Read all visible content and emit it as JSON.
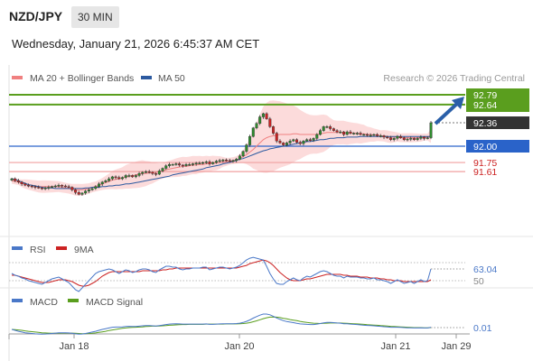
{
  "header": {
    "symbol": "NZD/JPY",
    "timeframe": "30 MIN",
    "datetime": "Wednesday, January 21, 2026 6:45:37 AM CET"
  },
  "colors": {
    "ma20": "#f08080",
    "ma50": "#2c5aa0",
    "bands_fill": "#fbd5d5",
    "candle_up": "#2e8b2e",
    "candle_down": "#cc2222",
    "resistance": "#5a9e1e",
    "support": "#2a63c9",
    "pivot_dark": "#333333",
    "rsi": "#4a78c8",
    "rsi_ma": "#cc2222",
    "macd": "#4a78c8",
    "macd_signal": "#5a9e1e"
  },
  "chart_data": {
    "type": "candlestick",
    "legend": [
      {
        "name": "MA 20 + Bollinger Bands",
        "color": "#f08080"
      },
      {
        "name": "MA 50",
        "color": "#2c5aa0"
      }
    ],
    "credit": "Research © 2026 Trading Central",
    "ylim": [
      91.2,
      92.88
    ],
    "x_ticks": [
      "Jan 18",
      "Jan 20",
      "Jan 21",
      "Jan 29"
    ],
    "levels": [
      {
        "value": 92.79,
        "label": "92.79",
        "kind": "resistance-box"
      },
      {
        "value": 92.64,
        "label": "92.64",
        "kind": "resistance"
      },
      {
        "value": 92.36,
        "label": "92.36",
        "kind": "current"
      },
      {
        "value": 92.0,
        "label": "92.00",
        "kind": "support-box"
      },
      {
        "value": 91.75,
        "label": "91.75",
        "kind": "support-minor"
      },
      {
        "value": 91.61,
        "label": "91.61",
        "kind": "support-minor"
      }
    ],
    "close": [
      91.5,
      91.47,
      91.45,
      91.42,
      91.4,
      91.39,
      91.38,
      91.37,
      91.36,
      91.35,
      91.36,
      91.37,
      91.38,
      91.39,
      91.4,
      91.39,
      91.38,
      91.37,
      91.33,
      91.29,
      91.26,
      91.28,
      91.31,
      91.33,
      91.35,
      91.38,
      91.42,
      91.45,
      91.47,
      91.5,
      91.53,
      91.52,
      91.5,
      91.52,
      91.55,
      91.55,
      91.53,
      91.55,
      91.58,
      91.6,
      91.61,
      91.6,
      91.58,
      91.57,
      91.62,
      91.66,
      91.7,
      91.72,
      91.72,
      91.73,
      91.71,
      91.7,
      91.72,
      91.72,
      91.73,
      91.74,
      91.74,
      91.75,
      91.76,
      91.73,
      91.75,
      91.77,
      91.78,
      91.79,
      91.78,
      91.77,
      91.78,
      91.8,
      91.85,
      91.92,
      92.02,
      92.15,
      92.28,
      92.35,
      92.45,
      92.5,
      92.42,
      92.3,
      92.2,
      92.08,
      92.05,
      92.02,
      92.05,
      92.08,
      92.1,
      92.06,
      92.04,
      92.08,
      92.1,
      92.09,
      92.12,
      92.18,
      92.24,
      92.3,
      92.3,
      92.27,
      92.24,
      92.22,
      92.22,
      92.18,
      92.22,
      92.2,
      92.2,
      92.2,
      92.18,
      92.18,
      92.17,
      92.17,
      92.18,
      92.16,
      92.16,
      92.14,
      92.13,
      92.1,
      92.12,
      92.15,
      92.13,
      92.1,
      92.11,
      92.12,
      92.1,
      92.12,
      92.14,
      92.12,
      92.13,
      92.36
    ],
    "ma20": [
      91.47,
      91.46,
      91.45,
      91.43,
      91.42,
      91.41,
      91.4,
      91.39,
      91.38,
      91.38,
      91.38,
      91.38,
      91.38,
      91.38,
      91.38,
      91.37,
      91.36,
      91.35,
      91.34,
      91.33,
      91.33,
      91.33,
      91.34,
      91.35,
      91.37,
      91.38,
      91.4,
      91.42,
      91.44,
      91.46,
      91.48,
      91.49,
      91.5,
      91.51,
      91.53,
      91.54,
      91.55,
      91.56,
      91.57,
      91.58,
      91.58,
      91.59,
      91.59,
      91.6,
      91.61,
      91.62,
      91.64,
      91.65,
      91.66,
      91.67,
      91.68,
      91.69,
      91.69,
      91.7,
      91.71,
      91.71,
      91.72,
      91.72,
      91.73,
      91.73,
      91.74,
      91.74,
      91.75,
      91.76,
      91.76,
      91.77,
      91.78,
      91.79,
      91.81,
      91.84,
      91.87,
      91.91,
      91.95,
      92.0,
      92.05,
      92.1,
      92.13,
      92.15,
      92.16,
      92.17,
      92.18,
      92.18,
      92.18,
      92.18,
      92.19,
      92.19,
      92.18,
      92.18,
      92.18,
      92.18,
      92.18,
      92.18,
      92.19,
      92.2,
      92.21,
      92.21,
      92.21,
      92.21,
      92.21,
      92.21,
      92.2,
      92.2,
      92.2,
      92.2,
      92.19,
      92.19,
      92.18,
      92.18,
      92.17,
      92.17,
      92.16,
      92.16,
      92.15,
      92.14,
      92.14,
      92.14,
      92.13,
      92.13,
      92.13,
      92.13,
      92.13,
      92.13,
      92.13,
      92.14,
      92.14,
      92.16
    ],
    "ma50": [
      91.5,
      91.49,
      91.47,
      91.45,
      91.43,
      91.41,
      91.4,
      91.39,
      91.38,
      91.37,
      91.36,
      91.36,
      91.36,
      91.35,
      91.35,
      91.35,
      91.35,
      91.35,
      91.35,
      91.35,
      91.35,
      91.35,
      91.36,
      91.36,
      91.37,
      91.37,
      91.37,
      91.38,
      91.38,
      91.39,
      91.39,
      91.4,
      91.4,
      91.41,
      91.42,
      91.42,
      91.43,
      91.44,
      91.45,
      91.46,
      91.47,
      91.48,
      91.49,
      91.5,
      91.51,
      91.52,
      91.53,
      91.54,
      91.56,
      91.57,
      91.58,
      91.59,
      91.6,
      91.61,
      91.62,
      91.63,
      91.64,
      91.65,
      91.67,
      91.68,
      91.69,
      91.7,
      91.71,
      91.73,
      91.74,
      91.75,
      91.77,
      91.78,
      91.8,
      91.81,
      91.83,
      91.85,
      91.87,
      91.89,
      91.91,
      91.93,
      91.94,
      91.96,
      91.97,
      91.98,
      91.99,
      92.0,
      92.01,
      92.02,
      92.03,
      92.04,
      92.05,
      92.06,
      92.07,
      92.07,
      92.08,
      92.09,
      92.1,
      92.1,
      92.11,
      92.12,
      92.12,
      92.13,
      92.13,
      92.13,
      92.14,
      92.14,
      92.14,
      92.14,
      92.15,
      92.15,
      92.15,
      92.15,
      92.15,
      92.15,
      92.15,
      92.15,
      92.15,
      92.15,
      92.15,
      92.15,
      92.15,
      92.15,
      92.15,
      92.15,
      92.15,
      92.15,
      92.15,
      92.15,
      92.15,
      92.15
    ],
    "rsi": {
      "name": "RSI",
      "ma_name": "9MA",
      "levels": [
        {
          "value": 70,
          "label": ""
        },
        {
          "value": 63.04,
          "label": "63.04"
        },
        {
          "value": 50,
          "label": "50"
        }
      ],
      "ylim": [
        30,
        80
      ],
      "values": [
        58,
        56,
        55,
        53,
        52,
        50,
        49,
        48,
        47,
        46,
        48,
        50,
        52,
        53,
        54,
        52,
        50,
        48,
        44,
        40,
        38,
        42,
        46,
        50,
        54,
        58,
        60,
        61,
        62,
        63,
        62,
        60,
        58,
        60,
        62,
        61,
        59,
        60,
        62,
        63,
        63,
        62,
        60,
        59,
        62,
        64,
        66,
        66,
        65,
        65,
        63,
        62,
        63,
        63,
        64,
        64,
        64,
        65,
        65,
        62,
        63,
        64,
        65,
        65,
        64,
        63,
        64,
        65,
        67,
        70,
        73,
        75,
        76,
        75,
        74,
        73,
        66,
        58,
        52,
        47,
        46,
        46,
        49,
        51,
        53,
        51,
        50,
        53,
        55,
        54,
        56,
        58,
        60,
        61,
        60,
        58,
        56,
        55,
        55,
        53,
        55,
        54,
        54,
        54,
        53,
        53,
        52,
        52,
        53,
        51,
        51,
        50,
        49,
        47,
        49,
        51,
        49,
        47,
        48,
        49,
        47,
        49,
        51,
        49,
        50,
        63
      ],
      "ma_values": [
        56,
        56,
        55,
        54,
        53,
        52,
        51,
        50,
        49,
        48,
        48,
        48,
        49,
        50,
        51,
        51,
        51,
        50,
        49,
        47,
        45,
        44,
        44,
        45,
        47,
        49,
        52,
        55,
        57,
        59,
        60,
        60,
        60,
        60,
        60,
        60,
        60,
        60,
        60,
        61,
        61,
        61,
        61,
        61,
        61,
        62,
        62,
        63,
        63,
        64,
        64,
        64,
        64,
        64,
        64,
        64,
        64,
        64,
        64,
        64,
        64,
        64,
        64,
        64,
        64,
        64,
        64,
        64,
        65,
        66,
        67,
        69,
        70,
        71,
        72,
        73,
        72,
        70,
        67,
        63,
        59,
        56,
        53,
        51,
        50,
        50,
        50,
        51,
        52,
        52,
        53,
        54,
        55,
        56,
        57,
        57,
        57,
        57,
        57,
        56,
        56,
        55,
        55,
        55,
        54,
        54,
        54,
        53,
        53,
        53,
        52,
        52,
        51,
        51,
        50,
        50,
        50,
        49,
        49,
        49,
        49,
        49,
        49,
        49,
        49,
        51
      ]
    },
    "macd": {
      "name": "MACD",
      "signal_name": "MACD Signal",
      "levels": [
        {
          "value": 0.01,
          "label": "0.01"
        }
      ],
      "ylim": [
        -0.06,
        0.1
      ],
      "values": [
        0.0,
        -0.005,
        -0.01,
        -0.014,
        -0.018,
        -0.02,
        -0.022,
        -0.024,
        -0.025,
        -0.026,
        -0.025,
        -0.024,
        -0.022,
        -0.02,
        -0.018,
        -0.018,
        -0.018,
        -0.019,
        -0.021,
        -0.024,
        -0.026,
        -0.025,
        -0.022,
        -0.018,
        -0.014,
        -0.01,
        -0.005,
        0.0,
        0.004,
        0.008,
        0.012,
        0.013,
        0.013,
        0.014,
        0.016,
        0.017,
        0.016,
        0.016,
        0.018,
        0.02,
        0.021,
        0.021,
        0.02,
        0.019,
        0.021,
        0.024,
        0.027,
        0.029,
        0.03,
        0.031,
        0.03,
        0.029,
        0.029,
        0.029,
        0.029,
        0.029,
        0.029,
        0.029,
        0.03,
        0.028,
        0.028,
        0.029,
        0.03,
        0.031,
        0.031,
        0.031,
        0.031,
        0.032,
        0.034,
        0.038,
        0.044,
        0.052,
        0.062,
        0.07,
        0.078,
        0.084,
        0.084,
        0.08,
        0.072,
        0.063,
        0.055,
        0.048,
        0.043,
        0.04,
        0.037,
        0.033,
        0.03,
        0.029,
        0.028,
        0.027,
        0.027,
        0.029,
        0.032,
        0.036,
        0.038,
        0.038,
        0.037,
        0.035,
        0.034,
        0.031,
        0.031,
        0.029,
        0.028,
        0.027,
        0.025,
        0.023,
        0.022,
        0.021,
        0.02,
        0.018,
        0.017,
        0.015,
        0.014,
        0.012,
        0.012,
        0.012,
        0.011,
        0.01,
        0.009,
        0.009,
        0.008,
        0.008,
        0.009,
        0.008,
        0.008,
        0.012
      ],
      "signal_values": [
        0.0,
        -0.001,
        -0.003,
        -0.005,
        -0.008,
        -0.01,
        -0.012,
        -0.014,
        -0.016,
        -0.018,
        -0.019,
        -0.02,
        -0.021,
        -0.021,
        -0.021,
        -0.02,
        -0.02,
        -0.02,
        -0.02,
        -0.021,
        -0.022,
        -0.023,
        -0.023,
        -0.022,
        -0.021,
        -0.019,
        -0.016,
        -0.013,
        -0.01,
        -0.006,
        -0.003,
        0.0,
        0.003,
        0.006,
        0.008,
        0.01,
        0.011,
        0.012,
        0.013,
        0.014,
        0.016,
        0.017,
        0.018,
        0.018,
        0.019,
        0.02,
        0.021,
        0.023,
        0.024,
        0.025,
        0.026,
        0.027,
        0.027,
        0.028,
        0.028,
        0.028,
        0.028,
        0.028,
        0.029,
        0.029,
        0.029,
        0.029,
        0.029,
        0.029,
        0.03,
        0.03,
        0.03,
        0.03,
        0.031,
        0.032,
        0.034,
        0.037,
        0.042,
        0.047,
        0.053,
        0.059,
        0.064,
        0.067,
        0.068,
        0.067,
        0.065,
        0.061,
        0.058,
        0.054,
        0.051,
        0.048,
        0.044,
        0.041,
        0.038,
        0.036,
        0.034,
        0.033,
        0.032,
        0.033,
        0.034,
        0.035,
        0.035,
        0.035,
        0.035,
        0.034,
        0.033,
        0.032,
        0.031,
        0.03,
        0.029,
        0.028,
        0.026,
        0.025,
        0.024,
        0.023,
        0.021,
        0.02,
        0.019,
        0.017,
        0.016,
        0.015,
        0.014,
        0.013,
        0.012,
        0.011,
        0.01,
        0.01,
        0.01,
        0.009,
        0.009,
        0.01
      ]
    }
  }
}
